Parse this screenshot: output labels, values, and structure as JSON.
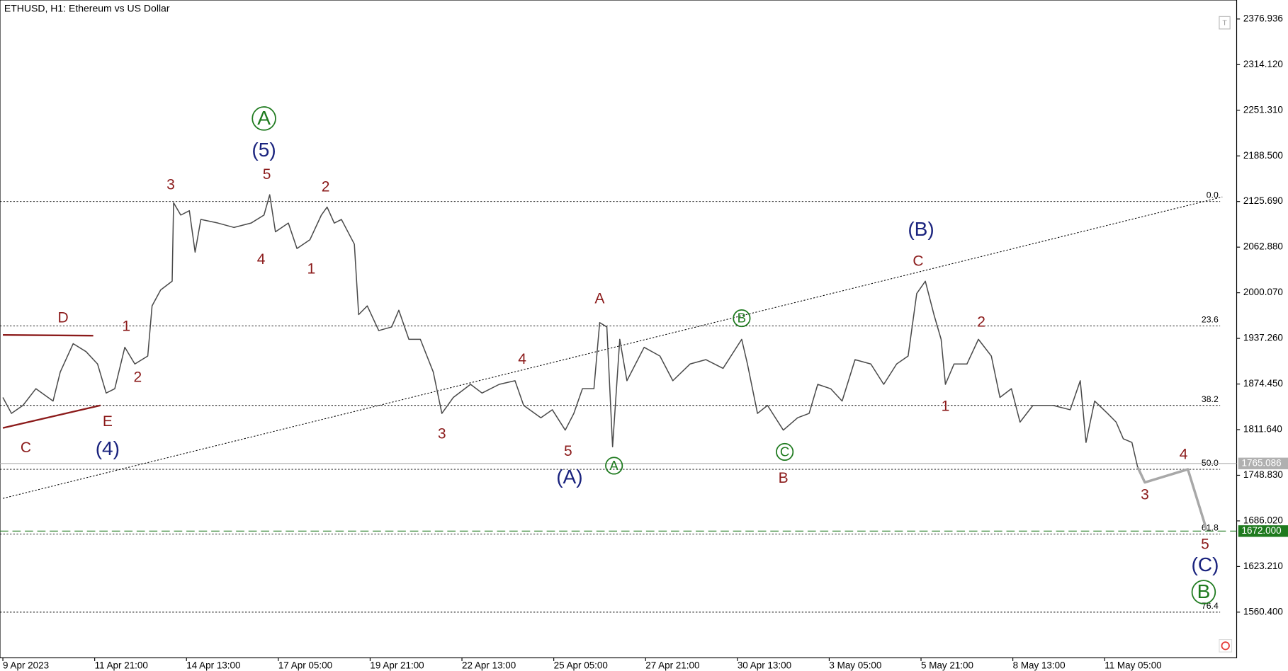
{
  "chart_data": {
    "type": "line",
    "title": "ETHUSD, H1:  Ethereum vs US Dollar",
    "xlim": [
      -2,
      860
    ],
    "ylim": [
      1497.6,
      2403.1
    ],
    "xticks": [
      {
        "value": 0,
        "label": "9 Apr 2023"
      },
      {
        "value": 64,
        "label": "11 Apr 21:00"
      },
      {
        "value": 128,
        "label": "14 Apr 13:00"
      },
      {
        "value": 192,
        "label": "17 Apr 05:00"
      },
      {
        "value": 256,
        "label": "19 Apr 21:00"
      },
      {
        "value": 320,
        "label": "22 Apr 13:00"
      },
      {
        "value": 384,
        "label": "25 Apr 05:00"
      },
      {
        "value": 448,
        "label": "27 Apr 21:00"
      },
      {
        "value": 512,
        "label": "30 Apr 13:00"
      },
      {
        "value": 576,
        "label": "3 May 05:00"
      },
      {
        "value": 640,
        "label": "5 May 21:00"
      },
      {
        "value": 704,
        "label": "8 May 13:00"
      },
      {
        "value": 768,
        "label": "11 May 05:00"
      }
    ],
    "yticks": [
      2376.936,
      {
        "value": 2314.12,
        "label": "2314.120"
      },
      {
        "value": 2251.31,
        "label": "2251.310"
      },
      {
        "value": 2188.5,
        "label": "2188.500"
      },
      {
        "value": 2125.69,
        "label": "2125.690"
      },
      {
        "value": 2062.88,
        "label": "2062.880"
      },
      {
        "value": 2000.07,
        "label": "2000.070"
      },
      {
        "value": 1937.26,
        "label": "1937.260"
      },
      {
        "value": 1874.45,
        "label": "1874.450"
      },
      {
        "value": 1811.64,
        "label": "1811.640"
      },
      {
        "value": 1748.83,
        "label": "1748.830"
      },
      {
        "value": 1686.02,
        "label": "1686.020"
      },
      {
        "value": 1623.21,
        "label": "1623.210"
      },
      {
        "value": 1560.4,
        "label": "1560.400"
      }
    ],
    "series": [
      {
        "color": "#4a4a4a",
        "width": 1.3,
        "x": [
          0,
          6,
          14,
          23,
          35,
          40,
          49,
          58,
          66,
          72,
          78,
          85,
          92,
          101,
          104,
          110,
          118,
          119,
          124,
          130,
          134,
          138,
          150,
          161,
          173,
          182,
          186,
          190,
          199,
          205,
          214,
          222,
          226,
          231,
          236,
          245,
          248,
          254,
          262,
          271,
          276,
          283,
          291,
          300,
          306,
          314,
          326,
          334,
          346,
          357,
          363,
          375,
          383,
          392,
          398,
          404,
          412,
          416,
          421,
          425,
          430,
          435,
          447,
          458,
          467,
          479,
          490,
          502,
          515,
          519,
          526,
          533,
          544,
          554,
          562,
          568,
          577,
          585,
          594,
          605,
          614,
          623,
          631,
          637,
          643,
          649,
          654,
          657,
          663,
          672,
          680,
          689,
          695,
          703,
          709,
          718,
          732,
          744,
          751,
          755,
          761,
          770,
          776,
          781,
          787,
          791
        ],
        "values": [
          1856,
          1834,
          1845,
          1868,
          1851,
          1891,
          1930,
          1919,
          1902,
          1862,
          1868,
          1925,
          1902,
          1913,
          1982,
          2004,
          2016,
          2124,
          2107,
          2113,
          2056,
          2101,
          2096,
          2090,
          2096,
          2107,
          2135,
          2084,
          2096,
          2061,
          2073,
          2107,
          2118,
          2096,
          2101,
          2067,
          1970,
          1982,
          1948,
          1953,
          1976,
          1936,
          1936,
          1891,
          1834,
          1856,
          1874,
          1862,
          1874,
          1879,
          1845,
          1828,
          1839,
          1811,
          1834,
          1868,
          1868,
          1959,
          1953,
          1788,
          1936,
          1879,
          1925,
          1913,
          1879,
          1902,
          1908,
          1896,
          1936,
          1902,
          1834,
          1845,
          1811,
          1828,
          1834,
          1874,
          1868,
          1851,
          1908,
          1902,
          1874,
          1902,
          1913,
          1999,
          2016,
          1970,
          1936,
          1874,
          1902,
          1902,
          1936,
          1913,
          1856,
          1868,
          1822,
          1845,
          1845,
          1839,
          1879,
          1794,
          1851,
          1834,
          1822,
          1799,
          1794,
          1760
        ]
      },
      {
        "color": "#a8a8a8",
        "width": 3,
        "x": [
          791,
          796,
          826,
          839
        ],
        "values": [
          1760,
          1739,
          1757,
          1674
        ]
      }
    ],
    "trend_lines": [
      {
        "color": "#000000",
        "dash": "dotted",
        "x": [
          0,
          850
        ],
        "values": [
          1717,
          2132
        ]
      },
      {
        "color": "#8b1a1a",
        "dash": "solid",
        "x": [
          0,
          63
        ],
        "values": [
          1942,
          1941
        ]
      },
      {
        "color": "#8b1a1a",
        "dash": "solid",
        "x": [
          0,
          68
        ],
        "values": [
          1814,
          1845
        ]
      }
    ],
    "fib_levels": [
      {
        "ratio": {
          "value": 0,
          "label": "0.0"
        },
        "price": 2125.69
      },
      {
        "ratio": 23.6,
        "price": 1954.3
      },
      {
        "ratio": 38.2,
        "price": 1845
      },
      {
        "ratio": {
          "value": 50,
          "label": "50.0"
        },
        "price": 1757
      },
      {
        "ratio": 61.8,
        "price": 1668
      },
      {
        "ratio": 76.4,
        "price": 1560.4
      }
    ],
    "price_tags": [
      {
        "value": 1765.086,
        "color": "#b0b0b0"
      },
      {
        "value": {
          "value": 1672,
          "label": "1672.000"
        },
        "color": "#1e7a1e"
      }
    ],
    "degree_colors": {
      "primary": "#1e7a1e",
      "intermediate": "#1a237e",
      "minor": "#8b1a1a",
      "minute": "#1e7a1e"
    },
    "annotations": [
      {
        "text": "C",
        "degree": "minor",
        "x": 16,
        "y": 1787
      },
      {
        "text": "D",
        "degree": "minor",
        "x": 42,
        "y": 1966
      },
      {
        "text": "E",
        "degree": "minor",
        "x": 73,
        "y": 1823
      },
      {
        "text": "(4)",
        "degree": "intermediate",
        "x": 73,
        "y": 1785
      },
      {
        "text": "1",
        "degree": "minor",
        "x": 86,
        "y": 1954
      },
      {
        "text": "2",
        "degree": "minor",
        "x": 94,
        "y": 1884
      },
      {
        "text": "3",
        "degree": "minor",
        "x": 117,
        "y": 2149
      },
      {
        "text": "(5)",
        "degree": "intermediate",
        "x": 182,
        "y": 2196
      },
      {
        "text": "A",
        "degree": "primary",
        "x": 182,
        "y": 2240
      },
      {
        "text": "5",
        "degree": "minor",
        "x": 184,
        "y": 2163
      },
      {
        "text": "4",
        "degree": "minor",
        "x": 180,
        "y": 2046
      },
      {
        "text": "2",
        "degree": "minor",
        "x": 225,
        "y": 2146
      },
      {
        "text": "1",
        "degree": "minor",
        "x": 215,
        "y": 2033
      },
      {
        "text": "3",
        "degree": "minor",
        "x": 306,
        "y": 1806
      },
      {
        "text": "4",
        "degree": "minor",
        "x": 362,
        "y": 1909
      },
      {
        "text": "5",
        "degree": "minor",
        "x": 394,
        "y": 1782
      },
      {
        "text": "(A)",
        "degree": "intermediate",
        "x": 395,
        "y": 1746
      },
      {
        "text": "A",
        "degree": "minor",
        "x": 416,
        "y": 1992
      },
      {
        "text": "A",
        "degree": "minute",
        "x": 426,
        "y": 1762
      },
      {
        "text": "B",
        "degree": "minute",
        "x": 515,
        "y": 1965
      },
      {
        "text": "C",
        "degree": "minute",
        "x": 545,
        "y": 1781
      },
      {
        "text": "B",
        "degree": "minor",
        "x": 544,
        "y": 1745
      },
      {
        "text": "(B)",
        "degree": "intermediate",
        "x": 640,
        "y": 2087
      },
      {
        "text": "C",
        "degree": "minor",
        "x": 638,
        "y": 2044
      },
      {
        "text": "2",
        "degree": "minor",
        "x": 682,
        "y": 1960
      },
      {
        "text": "1",
        "degree": "minor",
        "x": 657,
        "y": 1844
      },
      {
        "text": "3",
        "degree": "minor",
        "x": 796,
        "y": 1722
      },
      {
        "text": "4",
        "degree": "minor",
        "x": 823,
        "y": 1778
      },
      {
        "text": "5",
        "degree": "minor",
        "x": 838,
        "y": 1654
      },
      {
        "text": "(C)",
        "degree": "intermediate",
        "x": 838,
        "y": 1625
      },
      {
        "text": "B",
        "degree": "primary",
        "x": 837,
        "y": 1588
      }
    ]
  }
}
